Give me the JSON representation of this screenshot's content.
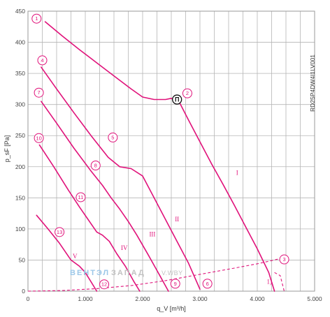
{
  "model_code": "RD25P4DW4I1LV001",
  "watermark": {
    "brand_blue": "ВЕНТЭЛ",
    "brand_gray": "ЗАПАД",
    "domain": "V.WBY"
  },
  "colors": {
    "curve": "#e0127a",
    "grid": "#b5b5b5",
    "text": "#444444",
    "watermark_blue": "#9cc7e8",
    "watermark_gray": "#c2c2c2"
  },
  "chart_data": {
    "type": "line",
    "xlabel": "q_V [m³/h]",
    "ylabel": "p_sF [Pa]",
    "xlim": [
      0,
      5000
    ],
    "ylim": [
      0,
      450
    ],
    "x_ticks": [
      0,
      1000,
      2000,
      3000,
      4000,
      5000
    ],
    "x_tick_labels": [
      "0",
      "1.000",
      "2.000",
      "3.000",
      "4.000",
      "5.000"
    ],
    "y_ticks": [
      0,
      50,
      100,
      150,
      200,
      250,
      300,
      350,
      400,
      450
    ],
    "y_tick_labels": [
      "0",
      "50",
      "100",
      "150",
      "200",
      "250",
      "300",
      "350",
      "400",
      "450"
    ],
    "grid": true,
    "series": [
      {
        "name": "I",
        "label_at": [
          3650,
          187
        ],
        "points": [
          [
            300,
            433
          ],
          [
            600,
            410
          ],
          [
            900,
            388
          ],
          [
            1200,
            367
          ],
          [
            1500,
            346
          ],
          [
            1800,
            325
          ],
          [
            2000,
            312
          ],
          [
            2200,
            308
          ],
          [
            2400,
            308
          ],
          [
            2500,
            310
          ],
          [
            2650,
            302
          ],
          [
            2800,
            275
          ],
          [
            3000,
            240
          ],
          [
            3200,
            205
          ],
          [
            3400,
            172
          ],
          [
            3600,
            138
          ],
          [
            3800,
            103
          ],
          [
            4000,
            68
          ],
          [
            4200,
            30
          ],
          [
            4300,
            0
          ]
        ]
      },
      {
        "name": "II",
        "label_at": [
          2600,
          112
        ],
        "points": [
          [
            230,
            360
          ],
          [
            500,
            325
          ],
          [
            800,
            287
          ],
          [
            1100,
            250
          ],
          [
            1400,
            215
          ],
          [
            1600,
            200
          ],
          [
            1800,
            197
          ],
          [
            2000,
            185
          ],
          [
            2200,
            150
          ],
          [
            2400,
            115
          ],
          [
            2600,
            80
          ],
          [
            2800,
            45
          ],
          [
            3000,
            3
          ]
        ]
      },
      {
        "name": "III",
        "label_at": [
          2170,
          88
        ],
        "points": [
          [
            230,
            305
          ],
          [
            500,
            270
          ],
          [
            800,
            230
          ],
          [
            1100,
            193
          ],
          [
            1300,
            170
          ],
          [
            1450,
            150
          ],
          [
            1600,
            132
          ],
          [
            1750,
            112
          ],
          [
            1900,
            90
          ],
          [
            2100,
            58
          ],
          [
            2300,
            25
          ],
          [
            2450,
            0
          ]
        ]
      },
      {
        "name": "IV",
        "label_at": [
          1680,
          66
        ],
        "points": [
          [
            200,
            235
          ],
          [
            450,
            200
          ],
          [
            700,
            163
          ],
          [
            900,
            135
          ],
          [
            1050,
            115
          ],
          [
            1200,
            95
          ],
          [
            1300,
            90
          ],
          [
            1420,
            80
          ],
          [
            1550,
            60
          ],
          [
            1700,
            40
          ],
          [
            1850,
            15
          ],
          [
            1950,
            0
          ]
        ]
      },
      {
        "name": "V",
        "label_at": [
          820,
          53
        ],
        "points": [
          [
            150,
            122
          ],
          [
            350,
            100
          ],
          [
            550,
            77
          ],
          [
            750,
            50
          ],
          [
            900,
            40
          ],
          [
            1000,
            30
          ],
          [
            1100,
            15
          ],
          [
            1200,
            0
          ]
        ]
      }
    ],
    "system_curve": {
      "style": "dashed",
      "points": [
        [
          0,
          0
        ],
        [
          600,
          1
        ],
        [
          1200,
          4
        ],
        [
          1800,
          9
        ],
        [
          2400,
          17
        ],
        [
          3000,
          27
        ],
        [
          3600,
          37
        ],
        [
          4000,
          44
        ],
        [
          4200,
          48
        ],
        [
          4380,
          52
        ]
      ]
    },
    "dashed_extension": {
      "style": "dashed",
      "points": [
        [
          4300,
          30
        ],
        [
          4400,
          25
        ],
        [
          4470,
          0
        ]
      ]
    },
    "region_label": {
      "text": "1)",
      "at": [
        4210,
        12
      ]
    },
    "operating_point": {
      "label": "Π",
      "at": [
        2600,
        308
      ]
    },
    "markers": [
      {
        "label": "1",
        "at": [
          150,
          438
        ]
      },
      {
        "label": "2",
        "at": [
          2780,
          318
        ]
      },
      {
        "label": "3",
        "at": [
          4470,
          51
        ]
      },
      {
        "label": "4",
        "at": [
          250,
          371
        ]
      },
      {
        "label": "5",
        "at": [
          1480,
          247
        ]
      },
      {
        "label": "6",
        "at": [
          3130,
          12
        ]
      },
      {
        "label": "7",
        "at": [
          190,
          319
        ]
      },
      {
        "label": "8",
        "at": [
          1180,
          202
        ]
      },
      {
        "label": "9",
        "at": [
          2570,
          12
        ]
      },
      {
        "label": "10",
        "at": [
          190,
          246
        ]
      },
      {
        "label": "11",
        "at": [
          920,
          151
        ]
      },
      {
        "label": "12",
        "at": [
          1330,
          11
        ]
      },
      {
        "label": "13",
        "at": [
          550,
          95
        ]
      }
    ]
  }
}
